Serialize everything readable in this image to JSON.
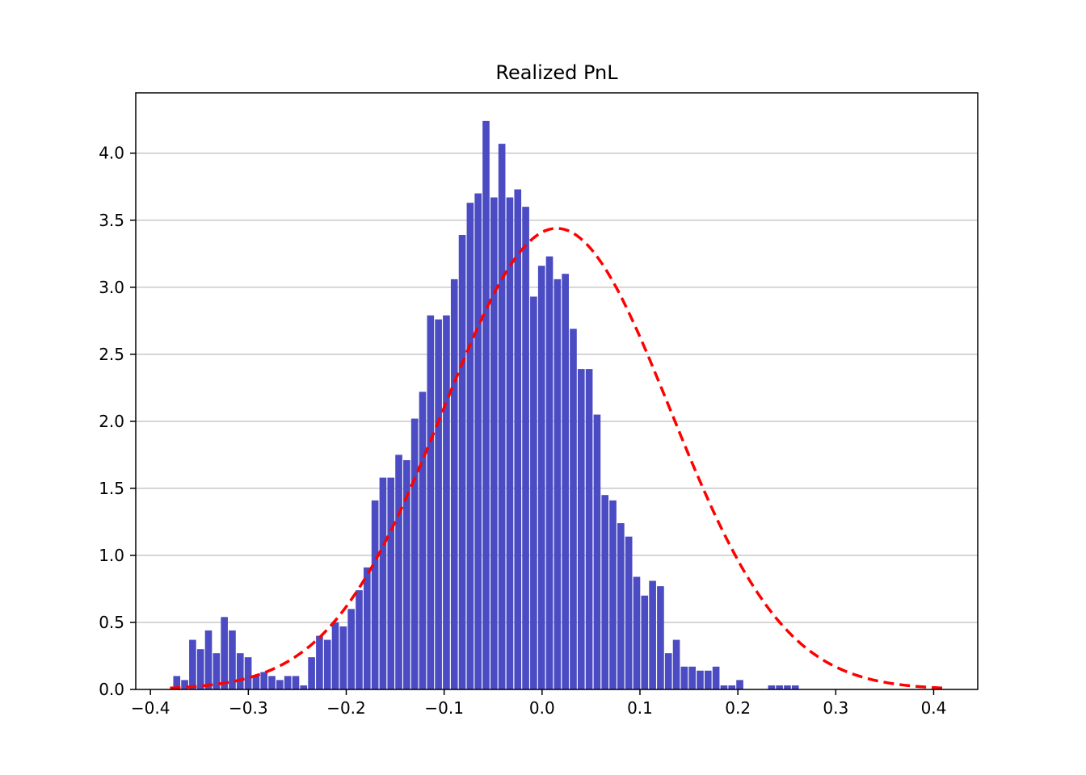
{
  "chart_data": {
    "type": "bar",
    "title": "Realized PnL",
    "xlabel": "",
    "ylabel": "",
    "xlim": [
      -0.415,
      0.445
    ],
    "ylim": [
      0.0,
      4.45
    ],
    "grid": "horizontal",
    "bar_color": "#4B4BC3",
    "bin_width": 0.00878,
    "x_ticks": [
      -0.4,
      -0.3,
      -0.2,
      -0.1,
      0.0,
      0.1,
      0.2,
      0.3,
      0.4
    ],
    "x_tick_labels": [
      "−0.4",
      "−0.3",
      "−0.2",
      "−0.1",
      "0.0",
      "0.1",
      "0.2",
      "0.3",
      "0.4"
    ],
    "y_ticks": [
      0.0,
      0.5,
      1.0,
      1.5,
      2.0,
      2.5,
      3.0,
      3.5,
      4.0
    ],
    "y_tick_labels": [
      "0.0",
      "0.5",
      "1.0",
      "1.5",
      "2.0",
      "2.5",
      "3.0",
      "3.5",
      "4.0"
    ],
    "bins": [
      [
        -0.3775,
        0.1
      ],
      [
        -0.3694,
        0.07
      ],
      [
        -0.3613,
        0.37
      ],
      [
        -0.3532,
        0.3
      ],
      [
        -0.3451,
        0.44
      ],
      [
        -0.337,
        0.27
      ],
      [
        -0.3289,
        0.54
      ],
      [
        -0.3208,
        0.44
      ],
      [
        -0.3127,
        0.27
      ],
      [
        -0.3046,
        0.24
      ],
      [
        -0.2965,
        0.1
      ],
      [
        -0.2884,
        0.13
      ],
      [
        -0.2803,
        0.1
      ],
      [
        -0.2722,
        0.07
      ],
      [
        -0.2641,
        0.1
      ],
      [
        -0.256,
        0.1
      ],
      [
        -0.2479,
        0.03
      ],
      [
        -0.2398,
        0.24
      ],
      [
        -0.2317,
        0.4
      ],
      [
        -0.2236,
        0.37
      ],
      [
        -0.2155,
        0.5
      ],
      [
        -0.2074,
        0.47
      ],
      [
        -0.1993,
        0.6
      ],
      [
        -0.1912,
        0.74
      ],
      [
        -0.1831,
        0.91
      ],
      [
        -0.175,
        1.41
      ],
      [
        -0.1669,
        1.58
      ],
      [
        -0.1588,
        1.58
      ],
      [
        -0.1507,
        1.75
      ],
      [
        -0.1426,
        1.71
      ],
      [
        -0.1345,
        2.02
      ],
      [
        -0.1264,
        2.22
      ],
      [
        -0.1183,
        2.79
      ],
      [
        -0.1102,
        2.76
      ],
      [
        -0.1021,
        2.79
      ],
      [
        -0.094,
        3.06
      ],
      [
        -0.0859,
        3.39
      ],
      [
        -0.0778,
        3.63
      ],
      [
        -0.0697,
        3.7
      ],
      [
        -0.0616,
        4.24
      ],
      [
        -0.0535,
        3.67
      ],
      [
        -0.0454,
        4.07
      ],
      [
        -0.0373,
        3.67
      ],
      [
        -0.0292,
        3.73
      ],
      [
        -0.0211,
        3.6
      ],
      [
        -0.013,
        2.93
      ],
      [
        -0.0049,
        3.16
      ],
      [
        0.0032,
        3.23
      ],
      [
        0.0113,
        3.06
      ],
      [
        0.0194,
        3.1
      ],
      [
        0.0275,
        2.69
      ],
      [
        0.0356,
        2.39
      ],
      [
        0.0437,
        2.39
      ],
      [
        0.0518,
        2.05
      ],
      [
        0.0599,
        1.45
      ],
      [
        0.068,
        1.41
      ],
      [
        0.0761,
        1.24
      ],
      [
        0.0842,
        1.14
      ],
      [
        0.0923,
        0.84
      ],
      [
        0.1004,
        0.7
      ],
      [
        0.1085,
        0.81
      ],
      [
        0.1166,
        0.77
      ],
      [
        0.1247,
        0.27
      ],
      [
        0.1328,
        0.37
      ],
      [
        0.1409,
        0.17
      ],
      [
        0.149,
        0.17
      ],
      [
        0.1571,
        0.14
      ],
      [
        0.1652,
        0.14
      ],
      [
        0.1733,
        0.17
      ],
      [
        0.1814,
        0.03
      ],
      [
        0.1895,
        0.03
      ],
      [
        0.1976,
        0.07
      ],
      [
        0.23,
        0.03
      ],
      [
        0.2381,
        0.03
      ],
      [
        0.2462,
        0.03
      ],
      [
        0.2543,
        0.03
      ]
    ],
    "fit_curve": {
      "type": "normal-pdf",
      "color": "#FF0000",
      "style": "dashed",
      "mean": 0.015,
      "std": 0.116,
      "x_range": [
        -0.38,
        0.41
      ]
    }
  }
}
